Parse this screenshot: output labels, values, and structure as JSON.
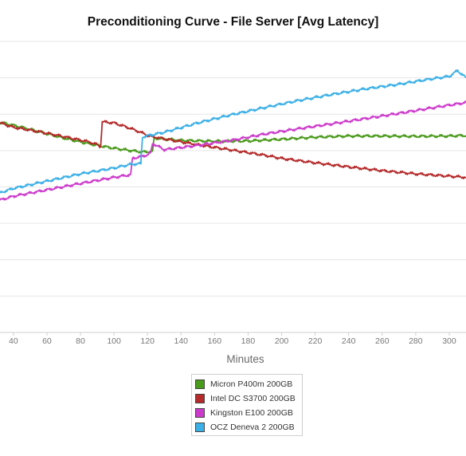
{
  "chart_data": {
    "type": "line",
    "title": "Preconditioning Curve - File Server [Avg Latency]",
    "xlabel": "Minutes",
    "ylabel": "",
    "xlim": [
      32,
      310
    ],
    "ylim": [
      0,
      1
    ],
    "x_ticks": [
      "40",
      "60",
      "80",
      "100",
      "120",
      "140",
      "160",
      "180",
      "200",
      "220",
      "240",
      "260",
      "280",
      "300"
    ],
    "grid": true,
    "legend_position": "bottom",
    "series": [
      {
        "name": "Micron P400m 200GB",
        "color": "#4a9a1c",
        "points": [
          [
            32,
            0.722
          ],
          [
            40,
            0.712
          ],
          [
            50,
            0.698
          ],
          [
            60,
            0.683
          ],
          [
            70,
            0.668
          ],
          [
            80,
            0.655
          ],
          [
            90,
            0.643
          ],
          [
            100,
            0.633
          ],
          [
            110,
            0.625
          ],
          [
            117,
            0.62
          ],
          [
            123,
            0.622
          ],
          [
            124,
            0.668
          ],
          [
            130,
            0.665
          ],
          [
            140,
            0.66
          ],
          [
            160,
            0.657
          ],
          [
            180,
            0.658
          ],
          [
            200,
            0.664
          ],
          [
            220,
            0.671
          ],
          [
            240,
            0.675
          ],
          [
            260,
            0.675
          ],
          [
            280,
            0.674
          ],
          [
            300,
            0.675
          ],
          [
            310,
            0.677
          ]
        ]
      },
      {
        "name": "Intel DC S3700 200GB",
        "color": "#b52a2a",
        "points": [
          [
            32,
            0.72
          ],
          [
            40,
            0.705
          ],
          [
            55,
            0.69
          ],
          [
            70,
            0.673
          ],
          [
            85,
            0.655
          ],
          [
            90,
            0.645
          ],
          [
            92,
            0.638
          ],
          [
            93,
            0.724
          ],
          [
            100,
            0.72
          ],
          [
            108,
            0.705
          ],
          [
            115,
            0.69
          ],
          [
            121,
            0.675
          ],
          [
            130,
            0.665
          ],
          [
            150,
            0.645
          ],
          [
            170,
            0.627
          ],
          [
            190,
            0.609
          ],
          [
            200,
            0.598
          ],
          [
            220,
            0.583
          ],
          [
            240,
            0.569
          ],
          [
            260,
            0.556
          ],
          [
            280,
            0.545
          ],
          [
            300,
            0.537
          ],
          [
            310,
            0.533
          ]
        ]
      },
      {
        "name": "Kingston E100 200GB",
        "color": "#cc3acb",
        "points": [
          [
            32,
            0.455
          ],
          [
            40,
            0.468
          ],
          [
            60,
            0.49
          ],
          [
            80,
            0.512
          ],
          [
            100,
            0.533
          ],
          [
            110,
            0.542
          ],
          [
            111,
            0.598
          ],
          [
            120,
            0.61
          ],
          [
            122,
            0.618
          ],
          [
            123,
            0.65
          ],
          [
            130,
            0.628
          ],
          [
            150,
            0.643
          ],
          [
            170,
            0.66
          ],
          [
            190,
            0.682
          ],
          [
            210,
            0.7
          ],
          [
            230,
            0.717
          ],
          [
            250,
            0.735
          ],
          [
            270,
            0.753
          ],
          [
            290,
            0.772
          ],
          [
            310,
            0.79
          ]
        ]
      },
      {
        "name": "OCZ Deneva 2 200GB",
        "color": "#3bb0e6",
        "points": [
          [
            32,
            0.48
          ],
          [
            40,
            0.495
          ],
          [
            60,
            0.52
          ],
          [
            80,
            0.545
          ],
          [
            100,
            0.565
          ],
          [
            110,
            0.578
          ],
          [
            116,
            0.58
          ],
          [
            117,
            0.672
          ],
          [
            130,
            0.688
          ],
          [
            150,
            0.72
          ],
          [
            170,
            0.748
          ],
          [
            190,
            0.773
          ],
          [
            210,
            0.797
          ],
          [
            230,
            0.818
          ],
          [
            250,
            0.837
          ],
          [
            270,
            0.853
          ],
          [
            290,
            0.872
          ],
          [
            300,
            0.88
          ],
          [
            305,
            0.9
          ],
          [
            310,
            0.875
          ]
        ]
      }
    ]
  }
}
